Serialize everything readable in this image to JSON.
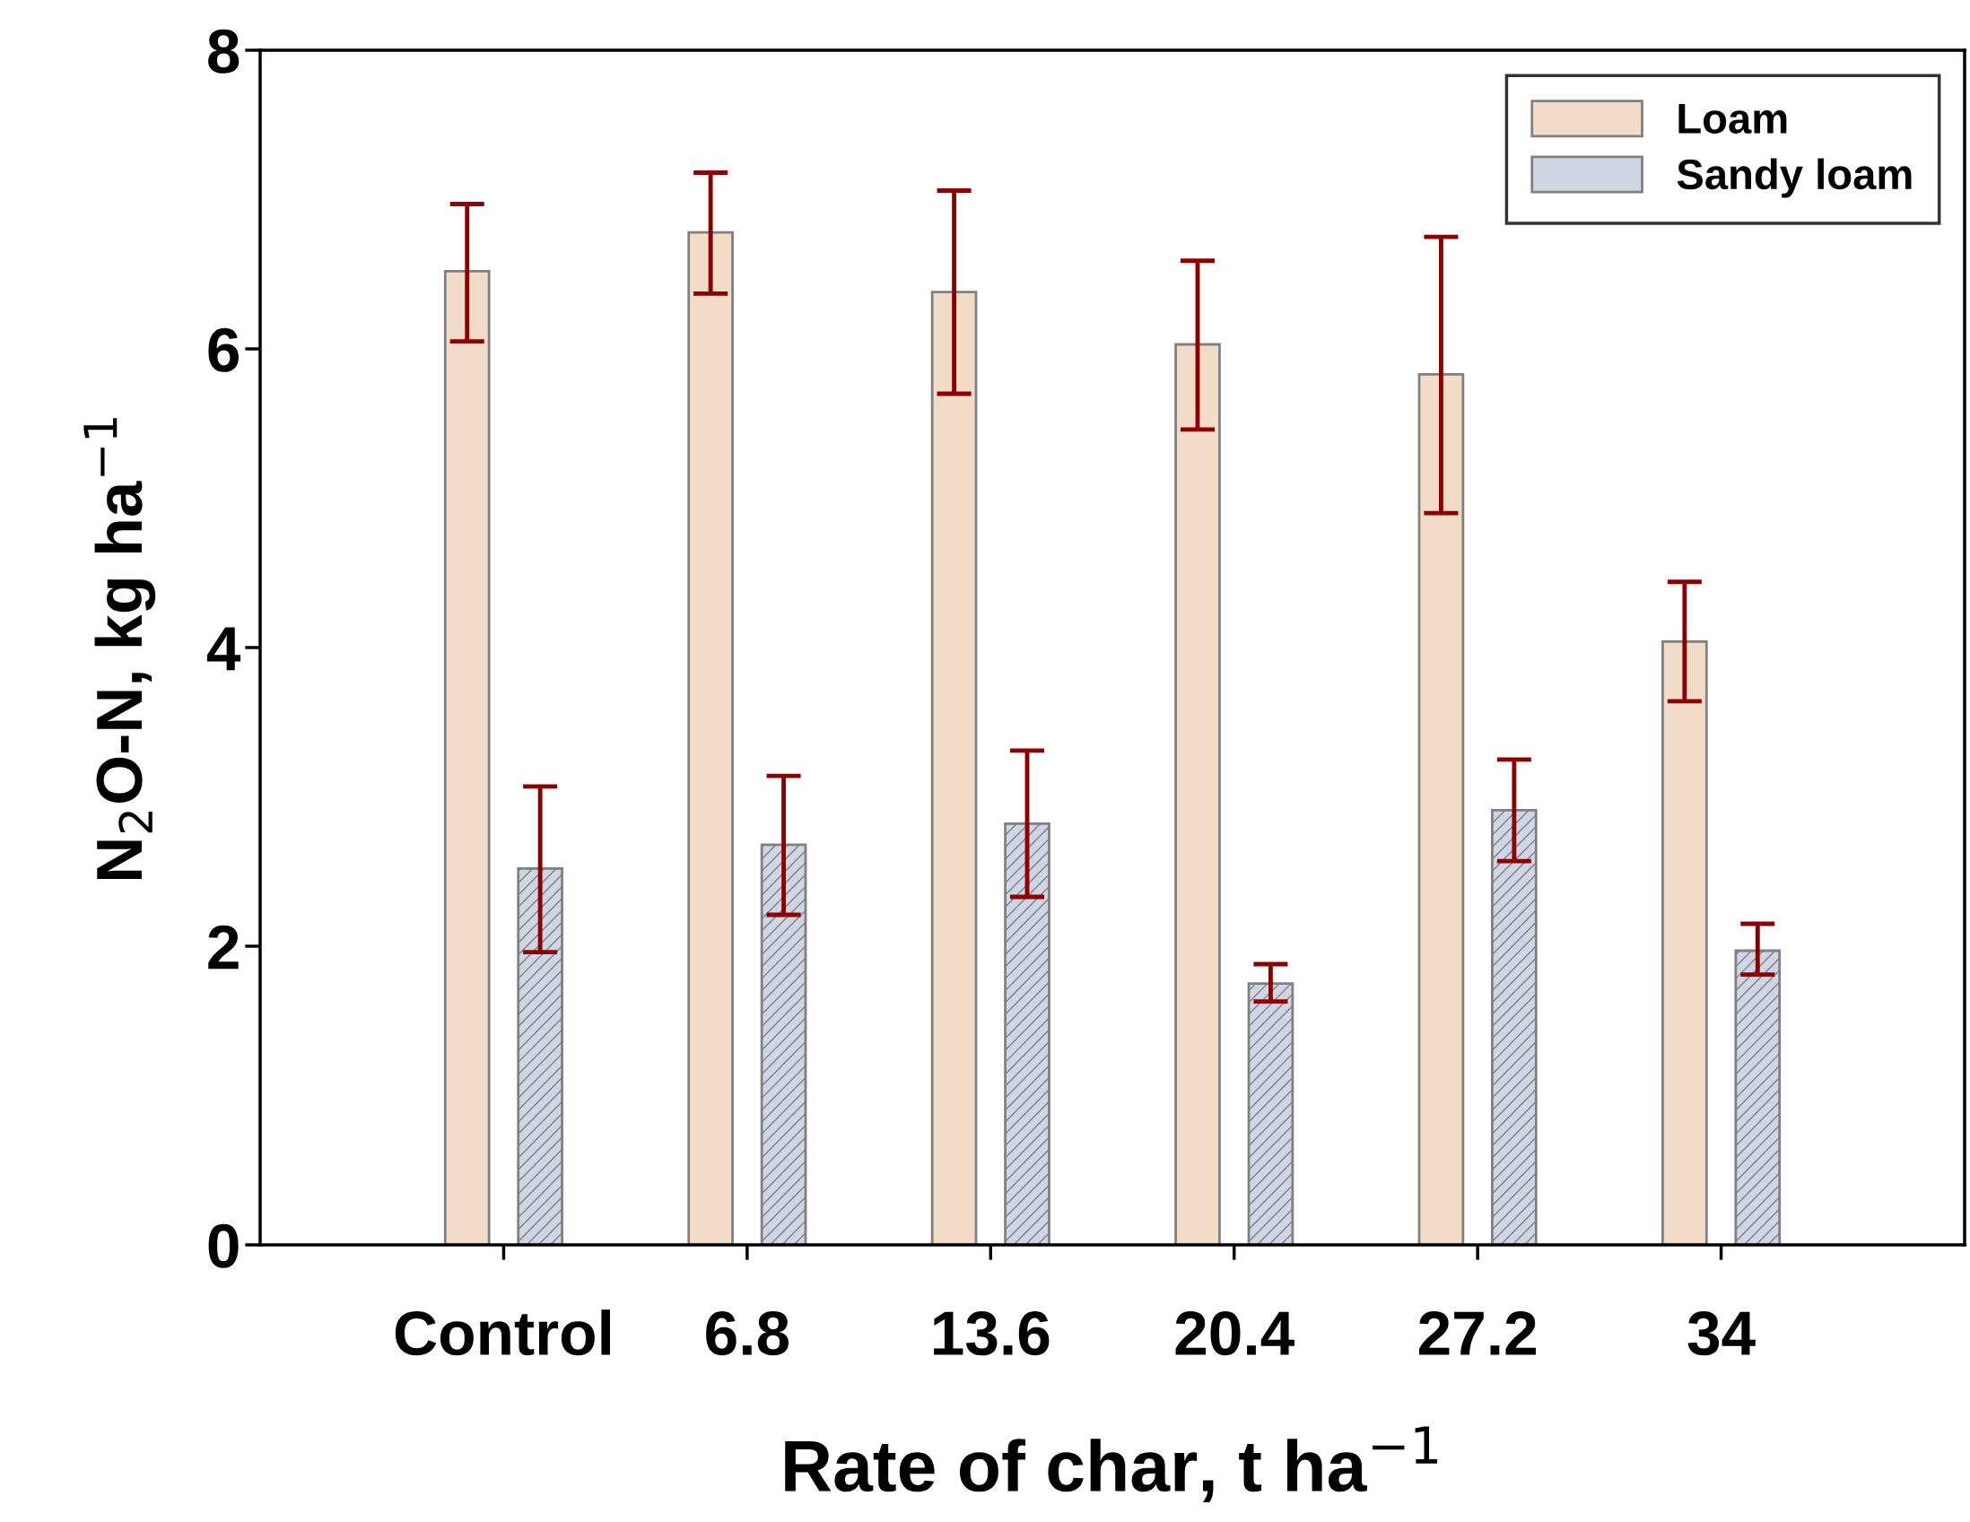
{
  "chart_data": {
    "type": "bar",
    "xlabel": "Rate of char, t ha$^{−1}$",
    "ylabel": "N$_{2}$O-N, kg ha$^{−1}$",
    "categories": [
      "Control",
      "6.8",
      "13.6",
      "20.4",
      "27.2",
      "34"
    ],
    "series": [
      {
        "name": "Loam",
        "color": "#f2dcc8",
        "values": [
          6.52,
          6.78,
          6.38,
          6.03,
          5.83,
          4.04
        ],
        "errors": [
          [
            6.05,
            6.97
          ],
          [
            6.37,
            7.18
          ],
          [
            5.7,
            7.06
          ],
          [
            5.46,
            6.59
          ],
          [
            4.9,
            6.75
          ],
          [
            3.64,
            4.44
          ]
        ]
      },
      {
        "name": "Sandy loam",
        "color": "#d0d5e3",
        "values": [
          2.52,
          2.68,
          2.82,
          1.75,
          2.91,
          1.97
        ],
        "errors": [
          [
            1.96,
            3.07
          ],
          [
            2.21,
            3.14
          ],
          [
            2.33,
            3.31
          ],
          [
            1.63,
            1.88
          ],
          [
            2.57,
            3.25
          ],
          [
            1.81,
            2.15
          ]
        ]
      }
    ],
    "ylim": [
      0,
      8
    ],
    "yticks": [
      0,
      2,
      4,
      6,
      8
    ],
    "grid": false,
    "legend": "top right"
  }
}
